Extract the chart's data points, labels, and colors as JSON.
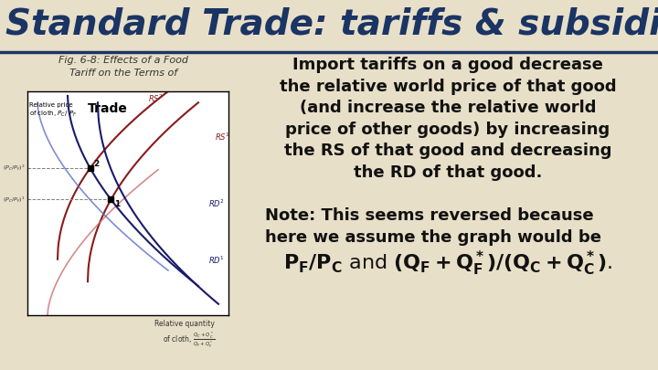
{
  "title": "Standard Trade: tariffs & subsidies",
  "title_color": "#1a3464",
  "background_color": "#e8dfc8",
  "fig_caption_line1": "Fig. 6-8: Effects of a Food",
  "fig_caption_line2": "Tariff on the Terms of",
  "graph_title": "Trade",
  "graph_ylabel": "Relative price\nof cloth, PⱠ/ Pⱡ",
  "graph_xlabel_line1": "Relative quantity",
  "graph_xlabel_line2": "of cloth,",
  "body_text_1": "Import tariffs on a good decrease\nthe relative world price of that good\n(and increase the relative world\nprice of other goods) by increasing\nthe RS of that good and decreasing\nthe RD of that good.",
  "body_text_2": "Note: This seems reversed because\nhere we assume the graph would be",
  "body_text_3": "Pₙ/P℀ and (Qₙ + Qₙ*)/(Q℀ + Q℀*).",
  "graph_bg": "#ffffff",
  "rs_dark_color": "#8b1a1a",
  "rs_light_color": "#c87070",
  "rd_dark_color": "#1a1a6b",
  "rd_light_color": "#6070c8",
  "underline_color": "#1a3464"
}
